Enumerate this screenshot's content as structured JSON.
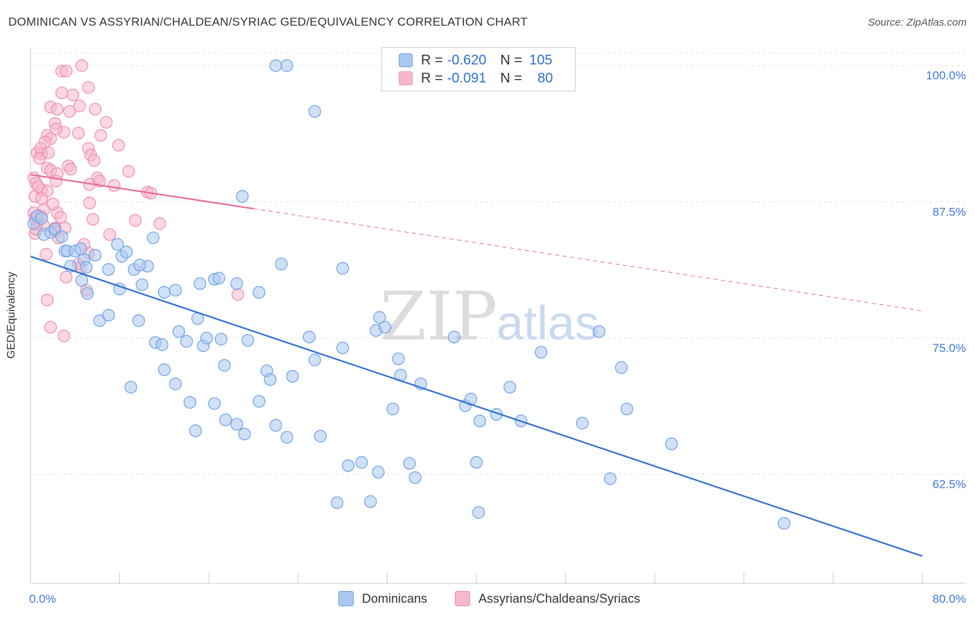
{
  "header": {
    "title": "DOMINICAN VS ASSYRIAN/CHALDEAN/SYRIAC GED/EQUIVALENCY CORRELATION CHART",
    "source": "Source: ZipAtlas.com"
  },
  "watermark": {
    "zip": "ZIP",
    "atlas": "atlas"
  },
  "legend_top": {
    "rows": [
      {
        "r_label": "R =",
        "r_value": "-0.620",
        "n_label": "N =",
        "n_value": "105",
        "color": "#a9c8f0"
      },
      {
        "r_label": "R =",
        "r_value": "-0.091",
        "n_label": "N =",
        "n_value": "80",
        "color": "#f7b8cb"
      }
    ]
  },
  "legend_bottom": {
    "items": [
      {
        "label": "Dominicans",
        "color": "#a9c8f0"
      },
      {
        "label": "Assyrians/Chaldeans/Syriacs",
        "color": "#f7b8cb"
      }
    ]
  },
  "chart_data": {
    "type": "scatter",
    "ylabel": "GED/Equivalency",
    "xlim": [
      0,
      80
    ],
    "ylim": [
      52.5,
      101.7
    ],
    "x_tick_labels": {
      "min": "0.0%",
      "max": "80.0%"
    },
    "y_ticks": [
      {
        "value": 62.5,
        "label": "62.5%"
      },
      {
        "value": 75.0,
        "label": "75.0%"
      },
      {
        "value": 87.5,
        "label": "87.5%"
      },
      {
        "value": 100.0,
        "label": "100.0%"
      }
    ],
    "grid": true,
    "colors": {
      "dominican_fill": "#a9c8f0",
      "dominican_stroke": "#6fa2e3",
      "dominican_line": "#2f6fd1",
      "assyrian_fill": "#f7b8cb",
      "assyrian_stroke": "#ee8fae",
      "assyrian_line": "#e46c98",
      "axis_text": "#3b78d8",
      "grid": "#e3e3e3"
    },
    "series": [
      {
        "name": "Dominicans",
        "trend": {
          "x": [
            0,
            80
          ],
          "y": [
            82.5,
            55.0
          ],
          "style": "solid"
        },
        "points": [
          [
            22.0,
            100.0
          ],
          [
            23.0,
            100.0
          ],
          [
            25.5,
            95.8
          ],
          [
            19.0,
            88.0
          ],
          [
            22.5,
            81.8
          ],
          [
            28.0,
            81.4
          ],
          [
            0.3,
            85.5
          ],
          [
            0.6,
            86.2
          ],
          [
            1.0,
            86.0
          ],
          [
            1.2,
            84.5
          ],
          [
            1.8,
            84.7
          ],
          [
            2.2,
            85.0
          ],
          [
            2.8,
            84.3
          ],
          [
            3.1,
            83.0
          ],
          [
            3.3,
            83.0
          ],
          [
            4.0,
            83.0
          ],
          [
            4.5,
            83.2
          ],
          [
            3.6,
            81.6
          ],
          [
            4.8,
            82.2
          ],
          [
            5.0,
            81.5
          ],
          [
            5.8,
            82.6
          ],
          [
            7.0,
            81.3
          ],
          [
            7.8,
            83.6
          ],
          [
            8.2,
            82.5
          ],
          [
            8.6,
            82.9
          ],
          [
            9.3,
            81.3
          ],
          [
            10.5,
            81.6
          ],
          [
            11.0,
            84.2
          ],
          [
            9.8,
            81.7
          ],
          [
            4.6,
            80.3
          ],
          [
            5.1,
            79.1
          ],
          [
            8.0,
            79.5
          ],
          [
            10.0,
            79.9
          ],
          [
            12.0,
            79.2
          ],
          [
            13.0,
            79.4
          ],
          [
            15.2,
            80.0
          ],
          [
            16.5,
            80.4
          ],
          [
            16.9,
            80.5
          ],
          [
            18.5,
            80.0
          ],
          [
            20.5,
            79.2
          ],
          [
            6.2,
            76.6
          ],
          [
            7.0,
            77.1
          ],
          [
            9.7,
            76.6
          ],
          [
            11.2,
            74.6
          ],
          [
            13.3,
            75.6
          ],
          [
            14.0,
            74.7
          ],
          [
            15.0,
            76.8
          ],
          [
            15.5,
            74.3
          ],
          [
            15.8,
            75.0
          ],
          [
            17.1,
            74.9
          ],
          [
            17.4,
            72.5
          ],
          [
            19.5,
            74.8
          ],
          [
            21.2,
            72.0
          ],
          [
            21.5,
            71.2
          ],
          [
            23.5,
            71.5
          ],
          [
            25.0,
            75.1
          ],
          [
            25.5,
            73.0
          ],
          [
            28.0,
            74.1
          ],
          [
            31.0,
            75.7
          ],
          [
            31.3,
            76.9
          ],
          [
            31.8,
            76.0
          ],
          [
            33.0,
            73.1
          ],
          [
            33.2,
            71.6
          ],
          [
            35.0,
            70.8
          ],
          [
            38.0,
            75.1
          ],
          [
            39.0,
            68.8
          ],
          [
            39.5,
            69.4
          ],
          [
            40.3,
            67.4
          ],
          [
            41.8,
            68.0
          ],
          [
            43.0,
            70.5
          ],
          [
            44.0,
            67.4
          ],
          [
            45.8,
            73.7
          ],
          [
            49.5,
            67.2
          ],
          [
            51.0,
            75.6
          ],
          [
            53.0,
            72.3
          ],
          [
            12.0,
            72.1
          ],
          [
            13.0,
            70.8
          ],
          [
            14.3,
            69.1
          ],
          [
            16.5,
            69.0
          ],
          [
            17.5,
            67.5
          ],
          [
            18.5,
            67.1
          ],
          [
            19.2,
            66.2
          ],
          [
            20.5,
            69.2
          ],
          [
            22.0,
            67.0
          ],
          [
            23.0,
            65.9
          ],
          [
            26.0,
            66.0
          ],
          [
            28.5,
            63.3
          ],
          [
            29.7,
            63.6
          ],
          [
            31.2,
            62.7
          ],
          [
            32.5,
            68.5
          ],
          [
            34.0,
            63.5
          ],
          [
            34.5,
            62.2
          ],
          [
            40.0,
            63.6
          ],
          [
            14.8,
            66.5
          ],
          [
            30.5,
            60.0
          ],
          [
            27.5,
            59.9
          ],
          [
            40.2,
            59.0
          ],
          [
            52.0,
            62.1
          ],
          [
            53.5,
            68.5
          ],
          [
            57.5,
            65.3
          ],
          [
            67.6,
            58.0
          ],
          [
            9.0,
            70.5
          ],
          [
            11.8,
            74.4
          ]
        ]
      },
      {
        "name": "Assyrians/Chaldeans/Syriacs",
        "trend": {
          "x": [
            0,
            80
          ],
          "y": [
            90.0,
            77.5
          ],
          "style": "solid-then-dashed",
          "solid_until_x": 20
        },
        "points": [
          [
            4.6,
            100.0
          ],
          [
            2.8,
            99.5
          ],
          [
            3.2,
            99.5
          ],
          [
            5.2,
            98.0
          ],
          [
            2.8,
            97.5
          ],
          [
            3.8,
            97.3
          ],
          [
            1.8,
            96.2
          ],
          [
            5.8,
            96.0
          ],
          [
            4.4,
            96.3
          ],
          [
            2.4,
            96.0
          ],
          [
            3.5,
            95.8
          ],
          [
            6.8,
            94.8
          ],
          [
            2.2,
            94.7
          ],
          [
            1.5,
            93.6
          ],
          [
            1.8,
            93.3
          ],
          [
            1.3,
            93.0
          ],
          [
            0.6,
            92.0
          ],
          [
            1.0,
            91.9
          ],
          [
            0.9,
            92.4
          ],
          [
            3.0,
            93.9
          ],
          [
            2.3,
            94.2
          ],
          [
            4.3,
            93.8
          ],
          [
            6.3,
            93.6
          ],
          [
            7.9,
            92.7
          ],
          [
            5.2,
            92.4
          ],
          [
            5.4,
            91.8
          ],
          [
            5.7,
            91.3
          ],
          [
            3.4,
            90.8
          ],
          [
            1.5,
            90.6
          ],
          [
            1.8,
            90.4
          ],
          [
            2.4,
            90.1
          ],
          [
            0.3,
            89.7
          ],
          [
            0.5,
            89.2
          ],
          [
            2.3,
            89.4
          ],
          [
            6.0,
            89.7
          ],
          [
            8.8,
            90.3
          ],
          [
            5.3,
            89.1
          ],
          [
            10.5,
            88.4
          ],
          [
            10.8,
            88.3
          ],
          [
            0.4,
            88.0
          ],
          [
            1.0,
            88.6
          ],
          [
            1.5,
            88.5
          ],
          [
            0.3,
            86.5
          ],
          [
            1.2,
            86.8
          ],
          [
            2.4,
            86.5
          ],
          [
            0.4,
            86.0
          ],
          [
            0.6,
            85.5
          ],
          [
            1.2,
            85.3
          ],
          [
            2.2,
            85.1
          ],
          [
            3.1,
            85.1
          ],
          [
            0.4,
            84.6
          ],
          [
            2.2,
            84.8
          ],
          [
            2.5,
            84.2
          ],
          [
            5.3,
            87.4
          ],
          [
            5.6,
            85.9
          ],
          [
            9.4,
            85.8
          ],
          [
            11.6,
            85.5
          ],
          [
            7.1,
            84.5
          ],
          [
            1.4,
            82.7
          ],
          [
            4.5,
            81.5
          ],
          [
            5.2,
            82.8
          ],
          [
            4.3,
            81.8
          ],
          [
            3.2,
            80.6
          ],
          [
            5.0,
            79.4
          ],
          [
            1.5,
            78.5
          ],
          [
            18.6,
            79.0
          ],
          [
            1.8,
            76.0
          ],
          [
            3.0,
            75.2
          ],
          [
            0.8,
            91.5
          ],
          [
            7.5,
            89.0
          ],
          [
            1.6,
            92.0
          ],
          [
            3.6,
            90.5
          ],
          [
            6.2,
            89.4
          ],
          [
            4.8,
            83.6
          ],
          [
            2.7,
            86.1
          ],
          [
            0.5,
            85.0
          ],
          [
            0.9,
            86.2
          ],
          [
            1.0,
            87.8
          ],
          [
            2.0,
            87.3
          ],
          [
            0.7,
            88.9
          ]
        ]
      }
    ]
  }
}
